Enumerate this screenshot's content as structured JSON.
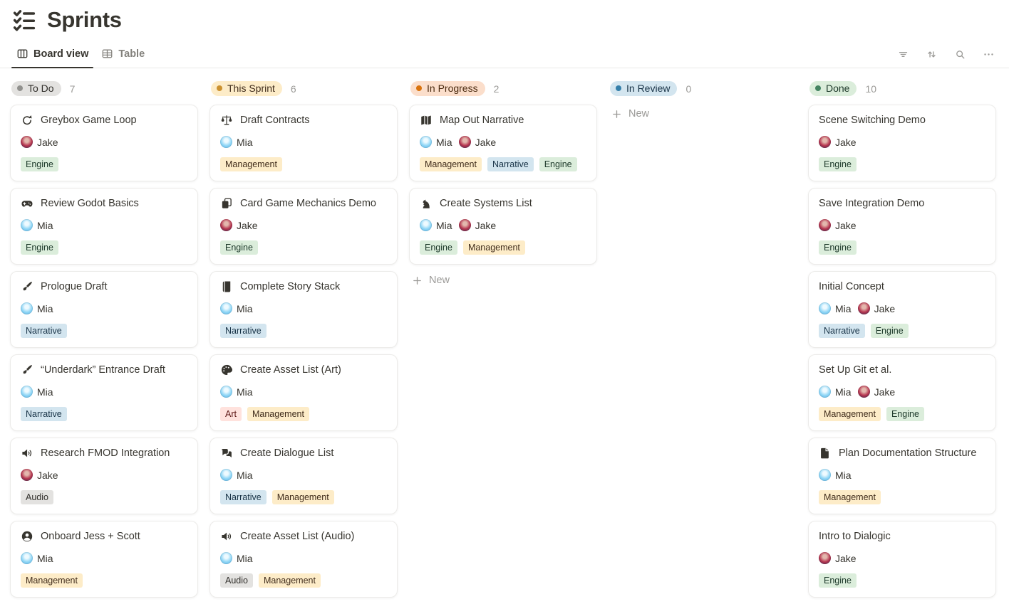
{
  "page": {
    "title": "Sprints",
    "icon": "checklist-icon"
  },
  "tabs": [
    {
      "label": "Board view",
      "icon": "board-icon",
      "active": true
    },
    {
      "label": "Table",
      "icon": "table-icon",
      "active": false
    }
  ],
  "toolbar": [
    {
      "name": "filter-icon"
    },
    {
      "name": "sort-icon"
    },
    {
      "name": "search-icon"
    },
    {
      "name": "more-icon"
    }
  ],
  "new_label": "New",
  "people": {
    "Mia": {
      "c1": "#eefaff",
      "c2": "#8fd6f6",
      "c3": "#56aee0"
    },
    "Jake": {
      "c1": "#e3b7ad",
      "c2": "#b5344e",
      "c3": "#302e55"
    }
  },
  "tags": {
    "Engine": {
      "bg": "#DBEDDB",
      "text": "#1C3829"
    },
    "Narrative": {
      "bg": "#D3E5EF",
      "text": "#183347"
    },
    "Management": {
      "bg": "#FDECC8",
      "text": "#402C1B"
    },
    "Audio": {
      "bg": "#E3E2E0",
      "text": "#32302C"
    },
    "Art": {
      "bg": "#FFE2DD",
      "text": "#5D1715"
    }
  },
  "columns": [
    {
      "name": "To Do",
      "count": 7,
      "pill_bg": "#E3E2E0",
      "pill_text": "#32302C",
      "dot": "#91918E",
      "show_new": false,
      "cards": [
        {
          "icon": "loop-icon",
          "title": "Greybox Game Loop",
          "assignees": [
            "Jake"
          ],
          "tags": [
            "Engine"
          ]
        },
        {
          "icon": "gamepad-icon",
          "title": "Review Godot Basics",
          "assignees": [
            "Mia"
          ],
          "tags": [
            "Engine"
          ]
        },
        {
          "icon": "brush-icon",
          "title": "Prologue Draft",
          "assignees": [
            "Mia"
          ],
          "tags": [
            "Narrative"
          ]
        },
        {
          "icon": "brush-icon",
          "title": "“Underdark” Entrance Draft",
          "assignees": [
            "Mia"
          ],
          "tags": [
            "Narrative"
          ]
        },
        {
          "icon": "speaker-icon",
          "title": "Research FMOD Integration",
          "assignees": [
            "Jake"
          ],
          "tags": [
            "Audio"
          ]
        },
        {
          "icon": "person-icon",
          "title": "Onboard Jess + Scott",
          "assignees": [
            "Mia"
          ],
          "tags": [
            "Management"
          ]
        }
      ]
    },
    {
      "name": "This Sprint",
      "count": 6,
      "pill_bg": "#FDECC8",
      "pill_text": "#402C1B",
      "dot": "#CB912F",
      "show_new": false,
      "cards": [
        {
          "icon": "scale-icon",
          "title": "Draft Contracts",
          "assignees": [
            "Mia"
          ],
          "tags": [
            "Management"
          ]
        },
        {
          "icon": "cards-icon",
          "title": "Card Game Mechanics Demo",
          "assignees": [
            "Jake"
          ],
          "tags": [
            "Engine"
          ]
        },
        {
          "icon": "book-icon",
          "title": "Complete Story Stack",
          "assignees": [
            "Mia"
          ],
          "tags": [
            "Narrative"
          ]
        },
        {
          "icon": "palette-icon",
          "title": "Create Asset List (Art)",
          "assignees": [
            "Mia"
          ],
          "tags": [
            "Art",
            "Management"
          ]
        },
        {
          "icon": "chat-icon",
          "title": "Create Dialogue List",
          "assignees": [
            "Mia"
          ],
          "tags": [
            "Narrative",
            "Management"
          ]
        },
        {
          "icon": "speaker-icon",
          "title": "Create Asset List (Audio)",
          "assignees": [
            "Mia"
          ],
          "tags": [
            "Audio",
            "Management"
          ]
        }
      ]
    },
    {
      "name": "In Progress",
      "count": 2,
      "pill_bg": "#FBDECB",
      "pill_text": "#49290E",
      "dot": "#D9730D",
      "show_new": true,
      "cards": [
        {
          "icon": "map-icon",
          "title": "Map Out Narrative",
          "assignees": [
            "Mia",
            "Jake"
          ],
          "tags": [
            "Management",
            "Narrative",
            "Engine"
          ]
        },
        {
          "icon": "knight-icon",
          "title": "Create Systems List",
          "assignees": [
            "Mia",
            "Jake"
          ],
          "tags": [
            "Engine",
            "Management"
          ]
        }
      ]
    },
    {
      "name": "In Review",
      "count": 0,
      "pill_bg": "#D3E5EF",
      "pill_text": "#183347",
      "dot": "#337EA9",
      "show_new": true,
      "cards": []
    },
    {
      "name": "Done",
      "count": 10,
      "pill_bg": "#DBEDDB",
      "pill_text": "#1C3829",
      "dot": "#448361",
      "show_new": false,
      "cards": [
        {
          "icon": null,
          "title": "Scene Switching Demo",
          "assignees": [
            "Jake"
          ],
          "tags": [
            "Engine"
          ]
        },
        {
          "icon": null,
          "title": "Save Integration Demo",
          "assignees": [
            "Jake"
          ],
          "tags": [
            "Engine"
          ]
        },
        {
          "icon": null,
          "title": "Initial Concept",
          "assignees": [
            "Mia",
            "Jake"
          ],
          "tags": [
            "Narrative",
            "Engine"
          ]
        },
        {
          "icon": null,
          "title": "Set Up Git et al.",
          "assignees": [
            "Mia",
            "Jake"
          ],
          "tags": [
            "Management",
            "Engine"
          ]
        },
        {
          "icon": "document-icon",
          "title": "Plan Documentation Structure",
          "assignees": [
            "Mia"
          ],
          "tags": [
            "Management"
          ]
        },
        {
          "icon": null,
          "title": "Intro to Dialogic",
          "assignees": [
            "Jake"
          ],
          "tags": [
            "Engine"
          ]
        }
      ]
    }
  ]
}
